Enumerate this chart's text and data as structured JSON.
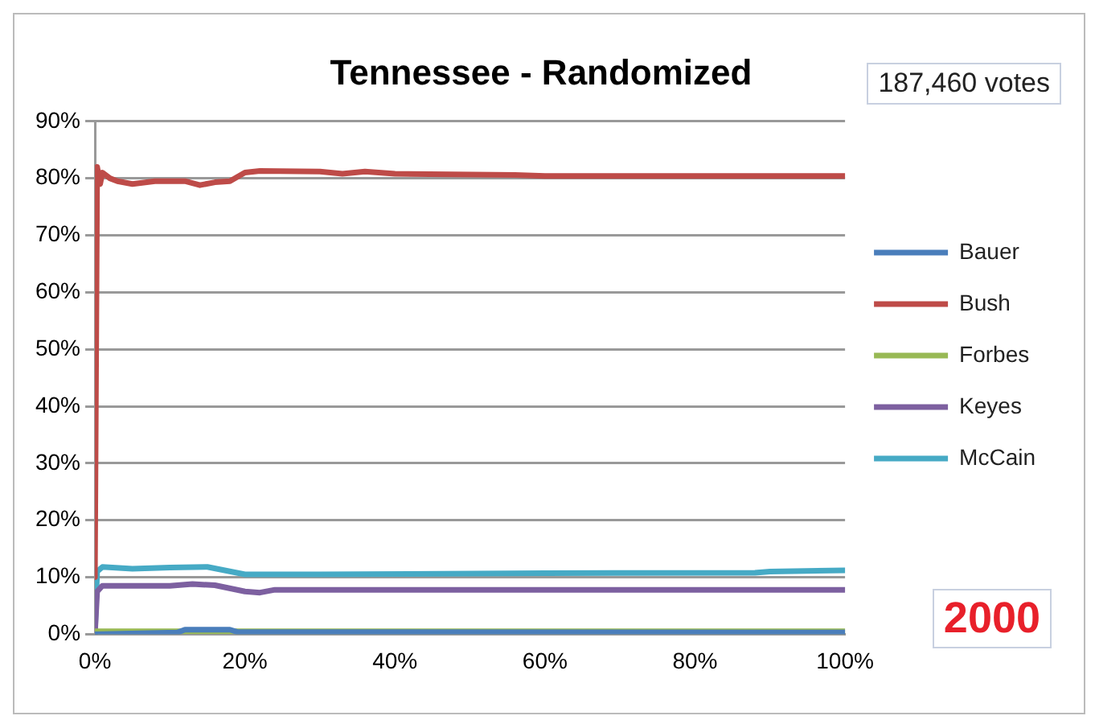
{
  "chart_data": {
    "type": "line",
    "title": "Tennessee - Randomized",
    "annotations": [
      "187,460 votes",
      "2000"
    ],
    "legend": "right",
    "grid": "y",
    "marker": "none",
    "line_style": "solid",
    "xlim": [
      0,
      100
    ],
    "xticks": [
      {
        "value": 0,
        "label": "0%"
      },
      {
        "value": 20,
        "label": "20%"
      },
      {
        "value": 40,
        "label": "40%"
      },
      {
        "value": 60,
        "label": "60%"
      },
      {
        "value": 80,
        "label": "80%"
      },
      {
        "value": 100,
        "label": "100%"
      }
    ],
    "ylim": [
      0,
      90
    ],
    "yticks": [
      {
        "value": 0,
        "label": "0%"
      },
      {
        "value": 10,
        "label": "10%"
      },
      {
        "value": 20,
        "label": "20%"
      },
      {
        "value": 30,
        "label": "30%"
      },
      {
        "value": 40,
        "label": "40%"
      },
      {
        "value": 50,
        "label": "50%"
      },
      {
        "value": 60,
        "label": "60%"
      },
      {
        "value": 70,
        "label": "70%"
      },
      {
        "value": 80,
        "label": "80%"
      },
      {
        "value": 90,
        "label": "90%"
      }
    ],
    "series": [
      {
        "name": "Bauer",
        "color": "#4a7ebb",
        "x": [
          0,
          11,
          12,
          18,
          19,
          100
        ],
        "values": [
          0,
          0.3,
          0.8,
          0.8,
          0.4,
          0.3
        ]
      },
      {
        "name": "Bush",
        "color": "#be4b48",
        "x": [
          0,
          0.3,
          0.7,
          1,
          2,
          3,
          5,
          8,
          12,
          14,
          16,
          18,
          20,
          22,
          30,
          33,
          36,
          40,
          56,
          60,
          100
        ],
        "values": [
          10,
          82,
          79,
          81,
          80,
          79.5,
          79,
          79.5,
          79.5,
          78.8,
          79.3,
          79.5,
          81,
          81.3,
          81.2,
          80.8,
          81.2,
          80.8,
          80.6,
          80.4,
          80.4
        ]
      },
      {
        "name": "Forbes",
        "color": "#98b954",
        "x": [
          0,
          100
        ],
        "values": [
          0.5,
          0.5
        ]
      },
      {
        "name": "Keyes",
        "color": "#7d60a0",
        "x": [
          0,
          0.3,
          1,
          5,
          10,
          13,
          16,
          20,
          22,
          24,
          100
        ],
        "values": [
          0,
          7.5,
          8.5,
          8.5,
          8.5,
          8.8,
          8.6,
          7.5,
          7.3,
          7.8,
          7.8
        ]
      },
      {
        "name": "McCain",
        "color": "#46aac5",
        "x": [
          0,
          0.3,
          1,
          5,
          10,
          15,
          20,
          30,
          60,
          88,
          90,
          100
        ],
        "values": [
          0,
          11,
          11.8,
          11.5,
          11.7,
          11.8,
          10.5,
          10.5,
          10.7,
          10.8,
          11,
          11.2
        ]
      }
    ]
  }
}
